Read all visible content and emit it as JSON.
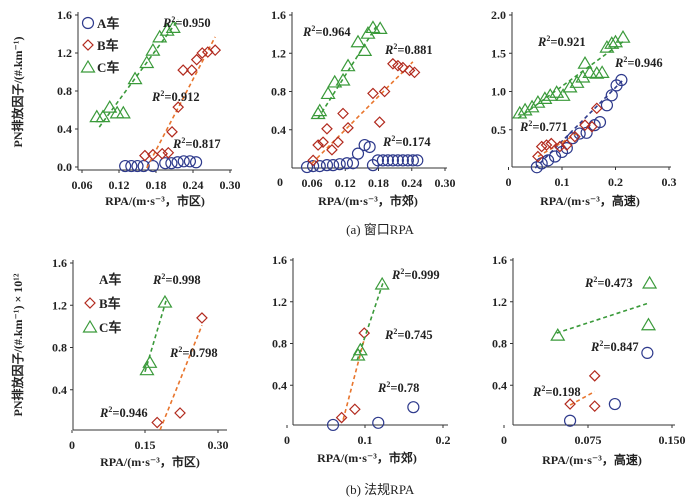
{
  "colors": {
    "A": "#2e3a8c",
    "B": "#b22a1e",
    "C": "#3a9a3a",
    "B_fit": "#e8752d",
    "C_fit": "#3a9a3a"
  },
  "captions": {
    "a": "(a) 窗口RPA",
    "b": "(b) 法规RPA"
  },
  "legend": {
    "A": "A车",
    "B": "B车",
    "C": "C车"
  },
  "chart_data": [
    {
      "type": "scatter",
      "group": "a",
      "xlabel": "RPA/(m·s⁻³，市区)",
      "ylabel": "PN排放因子/(#.km⁻¹)",
      "xlim": [
        0.06,
        0.3
      ],
      "ylim": [
        0,
        1.6
      ],
      "xticks": [
        [
          "0.06",
          0.06
        ],
        [
          "0.12",
          0.12
        ],
        [
          "0.18",
          0.18
        ],
        [
          "0.24",
          0.24
        ],
        [
          "0.30",
          0.3
        ]
      ],
      "yticks": [
        [
          "0.0",
          0
        ],
        [
          "0.4",
          0.4
        ],
        [
          "0.8",
          0.8
        ],
        [
          "1.2",
          1.2
        ],
        [
          "1.6",
          1.6
        ]
      ],
      "legend": "top-left",
      "grid": false,
      "series": [
        {
          "name": "A车",
          "marker": "circle",
          "points": [
            [
              0.13,
              0.01
            ],
            [
              0.14,
              0.01
            ],
            [
              0.15,
              0.01
            ],
            [
              0.16,
              0.01
            ],
            [
              0.175,
              0.01
            ],
            [
              0.195,
              0.04
            ],
            [
              0.205,
              0.04
            ],
            [
              0.215,
              0.05
            ],
            [
              0.225,
              0.06
            ],
            [
              0.235,
              0.06
            ],
            [
              0.245,
              0.05
            ]
          ]
        },
        {
          "name": "B车",
          "marker": "diamond",
          "points": [
            [
              0.162,
              0.12
            ],
            [
              0.175,
              0.13
            ],
            [
              0.19,
              0.14
            ],
            [
              0.2,
              0.15
            ],
            [
              0.206,
              0.37
            ],
            [
              0.216,
              0.63
            ],
            [
              0.224,
              1.02
            ],
            [
              0.238,
              1.02
            ],
            [
              0.246,
              1.13
            ],
            [
              0.255,
              1.2
            ],
            [
              0.264,
              1.21
            ],
            [
              0.276,
              1.23
            ]
          ],
          "fit": [
            [
              0.165,
              -0.01
            ],
            [
              0.276,
              1.37
            ]
          ]
        },
        {
          "name": "C车",
          "marker": "triangle",
          "points": [
            [
              0.084,
              0.53
            ],
            [
              0.094,
              0.53
            ],
            [
              0.105,
              0.63
            ],
            [
              0.117,
              0.57
            ],
            [
              0.127,
              0.57
            ],
            [
              0.146,
              0.93
            ],
            [
              0.165,
              1.1
            ],
            [
              0.175,
              1.23
            ],
            [
              0.186,
              1.37
            ],
            [
              0.198,
              1.44
            ],
            [
              0.208,
              1.47
            ]
          ],
          "fit": [
            [
              0.088,
              0.42
            ],
            [
              0.216,
              1.55
            ]
          ]
        }
      ],
      "annotations": [
        "R²=0.950",
        "R²=0.912",
        "R²=0.817"
      ]
    },
    {
      "type": "scatter",
      "group": "a",
      "xlabel": "RPA/(m·s⁻³，市郊)",
      "corner_label": "0",
      "xlim": [
        0.03,
        0.3
      ],
      "ylim": [
        0,
        1.6
      ],
      "xticks": [
        [
          "0.06",
          0.06
        ],
        [
          "0.12",
          0.12
        ],
        [
          "0.18",
          0.18
        ],
        [
          "0.24",
          0.24
        ],
        [
          "0.30",
          0.3
        ]
      ],
      "yticks": [
        [
          "0.4",
          0.4
        ],
        [
          "0.8",
          0.8
        ],
        [
          "1.2",
          1.2
        ],
        [
          "1.6",
          1.6
        ]
      ],
      "grid": false,
      "series": [
        {
          "name": "A车",
          "marker": "circle",
          "points": [
            [
              0.051,
              0.01
            ],
            [
              0.062,
              0.02
            ],
            [
              0.074,
              0.02
            ],
            [
              0.087,
              0.03
            ],
            [
              0.098,
              0.03
            ],
            [
              0.11,
              0.04
            ],
            [
              0.123,
              0.05
            ],
            [
              0.134,
              0.05
            ],
            [
              0.143,
              0.15
            ],
            [
              0.155,
              0.24
            ],
            [
              0.164,
              0.22
            ],
            [
              0.17,
              0.03
            ],
            [
              0.179,
              0.08
            ],
            [
              0.188,
              0.08
            ],
            [
              0.197,
              0.08
            ],
            [
              0.206,
              0.08
            ],
            [
              0.215,
              0.08
            ],
            [
              0.224,
              0.08
            ],
            [
              0.233,
              0.08
            ],
            [
              0.242,
              0.08
            ],
            [
              0.25,
              0.08
            ]
          ]
        },
        {
          "name": "B车",
          "marker": "diamond",
          "points": [
            [
              0.062,
              0.08
            ],
            [
              0.071,
              0.24
            ],
            [
              0.08,
              0.27
            ],
            [
              0.087,
              0.41
            ],
            [
              0.096,
              0.19
            ],
            [
              0.107,
              0.27
            ],
            [
              0.116,
              0.57
            ],
            [
              0.125,
              0.42
            ],
            [
              0.17,
              0.78
            ],
            [
              0.191,
              0.8
            ],
            [
              0.182,
              0.48
            ],
            [
              0.206,
              1.09
            ],
            [
              0.215,
              1.07
            ],
            [
              0.224,
              1.05
            ],
            [
              0.236,
              1.02
            ],
            [
              0.245,
              1.0
            ]
          ],
          "fit": [
            [
              0.06,
              0.05
            ],
            [
              0.242,
              1.11
            ]
          ]
        },
        {
          "name": "C车",
          "marker": "triangle",
          "points": [
            [
              0.071,
              0.57
            ],
            [
              0.074,
              0.6
            ],
            [
              0.089,
              0.78
            ],
            [
              0.101,
              0.9
            ],
            [
              0.116,
              0.92
            ],
            [
              0.125,
              1.07
            ],
            [
              0.143,
              1.32
            ],
            [
              0.155,
              1.23
            ],
            [
              0.161,
              1.41
            ],
            [
              0.17,
              1.47
            ],
            [
              0.183,
              1.46
            ]
          ],
          "fit": [
            [
              0.071,
              0.52
            ],
            [
              0.177,
              1.49
            ]
          ]
        }
      ],
      "annotations": [
        "R²=0.964",
        "R²=0.881",
        "R²=0.174"
      ]
    },
    {
      "type": "scatter",
      "group": "a",
      "xlabel": "RPA/(m·s⁻³，高速)",
      "xlim": [
        0,
        0.3
      ],
      "ylim": [
        0,
        2.0
      ],
      "xticks": [
        [
          "0",
          0
        ],
        [
          "0.1",
          0.1
        ],
        [
          "0.2",
          0.2
        ],
        [
          "0.3",
          0.3
        ]
      ],
      "yticks": [
        [
          "0.5",
          0.5
        ],
        [
          "1.0",
          1.0
        ],
        [
          "1.5",
          1.5
        ],
        [
          "2.0",
          2.0
        ]
      ],
      "grid": false,
      "series": [
        {
          "name": "A车",
          "marker": "circle",
          "points": [
            [
              0.053,
              0.01
            ],
            [
              0.062,
              0.06
            ],
            [
              0.074,
              0.1
            ],
            [
              0.087,
              0.15
            ],
            [
              0.1,
              0.21
            ],
            [
              0.109,
              0.26
            ],
            [
              0.12,
              0.39
            ],
            [
              0.133,
              0.45
            ],
            [
              0.146,
              0.46
            ],
            [
              0.161,
              0.56
            ],
            [
              0.171,
              0.6
            ],
            [
              0.184,
              0.82
            ],
            [
              0.193,
              0.95
            ],
            [
              0.202,
              1.08
            ],
            [
              0.211,
              1.15
            ]
          ],
          "fit": [
            [
              0.05,
              0.0
            ],
            [
              0.214,
              1.15
            ]
          ]
        },
        {
          "name": "B车",
          "marker": "diamond",
          "points": [
            [
              0.055,
              0.15
            ],
            [
              0.062,
              0.28
            ],
            [
              0.071,
              0.3
            ],
            [
              0.08,
              0.32
            ],
            [
              0.096,
              0.28
            ],
            [
              0.109,
              0.3
            ],
            [
              0.124,
              0.41
            ],
            [
              0.143,
              0.56
            ],
            [
              0.156,
              0.54
            ],
            [
              0.165,
              0.78
            ]
          ],
          "fit": [
            [
              0.055,
              0.15
            ],
            [
              0.128,
              0.45
            ]
          ]
        },
        {
          "name": "C车",
          "marker": "triangle",
          "points": [
            [
              0.021,
              0.72
            ],
            [
              0.031,
              0.76
            ],
            [
              0.044,
              0.8
            ],
            [
              0.055,
              0.86
            ],
            [
              0.068,
              0.91
            ],
            [
              0.078,
              0.95
            ],
            [
              0.09,
              0.99
            ],
            [
              0.102,
              0.95
            ],
            [
              0.115,
              1.06
            ],
            [
              0.128,
              1.12
            ],
            [
              0.139,
              1.19
            ],
            [
              0.143,
              1.37
            ],
            [
              0.152,
              1.25
            ],
            [
              0.165,
              1.24
            ],
            [
              0.175,
              1.25
            ],
            [
              0.184,
              1.58
            ],
            [
              0.193,
              1.63
            ],
            [
              0.2,
              1.65
            ],
            [
              0.214,
              1.71
            ]
          ],
          "fit": [
            [
              0.018,
              0.65
            ],
            [
              0.214,
              1.65
            ]
          ]
        }
      ],
      "annotations": [
        "R²=0.921",
        "R²=0.946",
        "R²=0.771"
      ]
    },
    {
      "type": "scatter",
      "group": "b",
      "xlabel": "RPA/(m·s⁻³，市区)",
      "ylabel": "PN排放因子/(#.km⁻¹) × 10¹²",
      "xlim": [
        0,
        0.3
      ],
      "ylim": [
        0,
        1.6
      ],
      "xticks": [
        [
          "0",
          0
        ],
        [
          "0.15",
          0.15
        ],
        [
          "0.30",
          0.3
        ]
      ],
      "yticks": [
        [
          "0.4",
          0.4
        ],
        [
          "0.8",
          0.8
        ],
        [
          "1.2",
          1.2
        ],
        [
          "1.6",
          1.6
        ]
      ],
      "legend": "top-left",
      "grid": false,
      "series": [
        {
          "name": "A车",
          "marker": "none",
          "points": []
        },
        {
          "name": "B车",
          "marker": "diamond",
          "points": [
            [
              0.267,
              1.08
            ],
            [
              0.222,
              0.18
            ],
            [
              0.175,
              0.09
            ]
          ],
          "fit": [
            [
              0.181,
              0.02
            ],
            [
              0.267,
              1.01
            ]
          ]
        },
        {
          "name": "C车",
          "marker": "triangle",
          "points": [
            [
              0.191,
              1.23
            ],
            [
              0.16,
              0.66
            ],
            [
              0.154,
              0.59
            ]
          ],
          "fit": [
            [
              0.15,
              0.57
            ],
            [
              0.195,
              1.27
            ]
          ]
        }
      ],
      "annotations": [
        "R²=0.998",
        "R²=0.798",
        "R²=0.946"
      ]
    },
    {
      "type": "scatter",
      "group": "b",
      "xlabel": "RPA/(m·s⁻³，市郊)",
      "xlim": [
        0,
        0.2
      ],
      "ylim": [
        0,
        1.6
      ],
      "xticks": [
        [
          "0",
          0
        ],
        [
          "0.1",
          0.1
        ],
        [
          "0.2",
          0.2
        ]
      ],
      "yticks": [
        [
          "0.4",
          0.4
        ],
        [
          "0.8",
          0.8
        ],
        [
          "1.2",
          1.2
        ],
        [
          "1.6",
          1.6
        ]
      ],
      "grid": false,
      "series": [
        {
          "name": "A车",
          "marker": "circle",
          "points": [
            [
              0.059,
              0.02
            ],
            [
              0.117,
              0.04
            ],
            [
              0.162,
              0.19
            ]
          ]
        },
        {
          "name": "B车",
          "marker": "diamond",
          "points": [
            [
              0.099,
              0.9
            ],
            [
              0.087,
              0.17
            ],
            [
              0.07,
              0.09
            ]
          ],
          "fit": [
            [
              0.072,
              0.07
            ],
            [
              0.099,
              0.84
            ]
          ]
        },
        {
          "name": "C车",
          "marker": "triangle",
          "points": [
            [
              0.122,
              1.37
            ],
            [
              0.094,
              0.74
            ],
            [
              0.091,
              0.69
            ]
          ],
          "fit": [
            [
              0.09,
              0.64
            ],
            [
              0.123,
              1.38
            ]
          ]
        }
      ],
      "annotations": [
        "R²=0.999",
        "R²=0.745",
        "R²=0.78"
      ]
    },
    {
      "type": "scatter",
      "group": "b",
      "xlabel": "RPA/(m·s⁻³，高速)",
      "xlim": [
        0,
        0.15
      ],
      "ylim": [
        0,
        1.6
      ],
      "xticks": [
        [
          "0",
          0
        ],
        [
          "0.075",
          0.075
        ],
        [
          "0.150",
          0.15
        ]
      ],
      "yticks": [
        [
          "0.4",
          0.4
        ],
        [
          "0.8",
          0.8
        ],
        [
          "1.2",
          1.2
        ],
        [
          "1.6",
          1.6
        ]
      ],
      "grid": false,
      "series": [
        {
          "name": "A车",
          "marker": "circle",
          "points": [
            [
              0.128,
              0.71
            ],
            [
              0.099,
              0.22
            ],
            [
              0.059,
              0.06
            ]
          ]
        },
        {
          "name": "B车",
          "marker": "diamond",
          "points": [
            [
              0.081,
              0.49
            ],
            [
              0.081,
              0.2
            ],
            [
              0.059,
              0.22
            ]
          ],
          "fit": [
            [
              0.059,
              0.21
            ],
            [
              0.081,
              0.34
            ]
          ]
        },
        {
          "name": "C车",
          "marker": "triangle",
          "points": [
            [
              0.048,
              0.88
            ],
            [
              0.129,
              0.98
            ],
            [
              0.13,
              1.38
            ]
          ],
          "fit": [
            [
              0.047,
              0.9
            ],
            [
              0.13,
              1.19
            ]
          ]
        }
      ],
      "annotations": [
        "R²=0.473",
        "R²=0.847",
        "R²=0.198"
      ]
    }
  ]
}
